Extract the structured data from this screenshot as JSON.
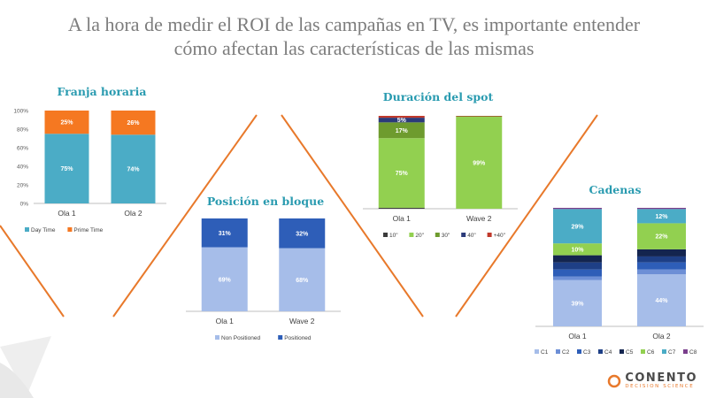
{
  "header": {
    "line1": "A la hora de medir el ROI de las campañas en TV, es importante entender",
    "line2": "cómo afectan las características de las mismas"
  },
  "brand": {
    "name": "CONENTO",
    "tagline": "DECISION SCIENCE",
    "accent": "#e8792b"
  },
  "colors": {
    "lines": "#e8792b",
    "title": "#2a9bb0"
  },
  "chart_data": [
    {
      "type": "bar",
      "stacked": true,
      "title": "Franja horaria",
      "categories": [
        "Ola 1",
        "Ola 2"
      ],
      "ylim": [
        0,
        100
      ],
      "yticks": [
        "0%",
        "20%",
        "40%",
        "60%",
        "80%",
        "100%"
      ],
      "series": [
        {
          "name": "Day Time",
          "color": "#4bacc6",
          "values": [
            75,
            74
          ],
          "labels": [
            "75%",
            "74%"
          ]
        },
        {
          "name": "Prime Time",
          "color": "#f57821",
          "values": [
            25,
            26
          ],
          "labels": [
            "25%",
            "26%"
          ]
        }
      ],
      "legend": "bottom"
    },
    {
      "type": "bar",
      "stacked": true,
      "title": "Posición en bloque",
      "categories": [
        "Ola 1",
        "Wave 2"
      ],
      "ylim": [
        0,
        100
      ],
      "series": [
        {
          "name": "Non Positioned",
          "color": "#a6bde9",
          "values": [
            69,
            68
          ],
          "labels": [
            "69%",
            "68%"
          ]
        },
        {
          "name": "Positioned",
          "color": "#2e5eb8",
          "values": [
            31,
            32
          ],
          "labels": [
            "31%",
            "32%"
          ]
        }
      ],
      "legend": "bottom"
    },
    {
      "type": "bar",
      "stacked": true,
      "title": "Duración del spot",
      "categories": [
        "Ola 1",
        "Wave 2"
      ],
      "ylim": [
        0,
        100
      ],
      "series": [
        {
          "name": "10\"",
          "color": "#3b3b3b",
          "values": [
            1,
            0
          ],
          "labels": [
            "",
            ""
          ]
        },
        {
          "name": "20\"",
          "color": "#92d050",
          "values": [
            75,
            99
          ],
          "labels": [
            "75%",
            "99%"
          ]
        },
        {
          "name": "30\"",
          "color": "#6e9b2e",
          "values": [
            17,
            0.5
          ],
          "labels": [
            "17%",
            ""
          ]
        },
        {
          "name": "40\"",
          "color": "#2b3a7a",
          "values": [
            5,
            0
          ],
          "labels": [
            "5%",
            ""
          ]
        },
        {
          "name": "+40\"",
          "color": "#c0392b",
          "values": [
            2,
            0.5
          ],
          "labels": [
            "",
            ""
          ]
        }
      ],
      "legend": "bottom"
    },
    {
      "type": "bar",
      "stacked": true,
      "title": "Cadenas",
      "categories": [
        "Ola 1",
        "Ola 2"
      ],
      "ylim": [
        0,
        100
      ],
      "series": [
        {
          "name": "C1",
          "color": "#a6bde9",
          "values": [
            39,
            44
          ],
          "labels": [
            "39%",
            "44%"
          ]
        },
        {
          "name": "C2",
          "color": "#6d8fd6",
          "values": [
            3,
            4
          ],
          "labels": [
            "",
            ""
          ]
        },
        {
          "name": "C3",
          "color": "#2e5eb8",
          "values": [
            6,
            6
          ],
          "labels": [
            "",
            ""
          ]
        },
        {
          "name": "C4",
          "color": "#1e3f86",
          "values": [
            6,
            5
          ],
          "labels": [
            "",
            ""
          ]
        },
        {
          "name": "C5",
          "color": "#14254f",
          "values": [
            6,
            6
          ],
          "labels": [
            "",
            ""
          ]
        },
        {
          "name": "C6",
          "color": "#92d050",
          "values": [
            10,
            22
          ],
          "labels": [
            "10%",
            "22%"
          ]
        },
        {
          "name": "C7",
          "color": "#4bacc6",
          "values": [
            29,
            12
          ],
          "labels": [
            "29%",
            "12%"
          ]
        },
        {
          "name": "C8",
          "color": "#7a3e8c",
          "values": [
            1,
            1
          ],
          "labels": [
            "",
            ""
          ]
        }
      ],
      "legend": "bottom"
    }
  ]
}
